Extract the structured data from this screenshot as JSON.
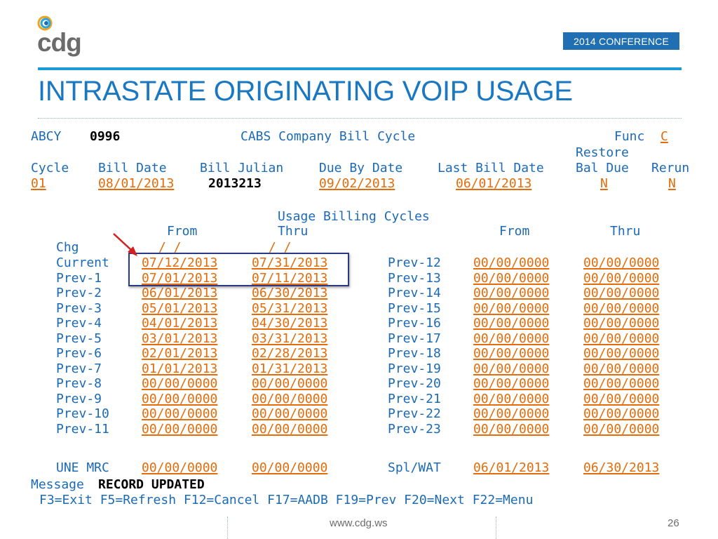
{
  "slide": {
    "logo_text": "cdg",
    "conference_badge": "2014 CONFERENCE",
    "title": "INTRASTATE ORIGINATING VOIP USAGE",
    "footer_url": "www.cdg.ws",
    "page_number": "26"
  },
  "colors": {
    "title_blue": "#1a78c2",
    "rule_blue": "#1a9ad6",
    "badge_blue": "#1f6fb2",
    "label_blue": "#1b6ab6",
    "field_orange": "#e46c0a",
    "highlight_box": "#2a3a86",
    "arrow_red": "#d21f1f"
  },
  "icons": {
    "logo": "cdg-logo-icon",
    "pointer": "red-arrow-icon"
  },
  "screen": {
    "header": {
      "screen_id": "ABCY",
      "company_code": "0996",
      "screen_title": "CABS Company Bill Cycle",
      "func_label": "Func",
      "func_value": "C"
    },
    "cycle_columns": {
      "cycle": "Cycle",
      "bill_date": "Bill Date",
      "bill_julian": "Bill Julian",
      "due_by_date": "Due By Date",
      "last_bill_date": "Last Bill Date",
      "restore": "Restore",
      "bal_due": "Bal Due",
      "rerun": "Rerun"
    },
    "cycle_values": {
      "cycle": "01",
      "bill_date": "08/01/2013",
      "bill_julian": "2013213",
      "due_by_date": "09/02/2013",
      "last_bill_date": "06/01/2013",
      "restore_bal_due": "N",
      "rerun": "N"
    },
    "usage": {
      "section_title": "Usage Billing Cycles",
      "from_header": "From",
      "thru_header": "Thru",
      "from_header_right": "From",
      "thru_header_right": "Thru",
      "chg_label": "Chg",
      "chg_from": "/ /",
      "chg_thru": "/ /",
      "left_rows": [
        {
          "label": "Current",
          "from": "07/12/2013",
          "thru": "07/31/2013"
        },
        {
          "label": "Prev-1",
          "from": "07/01/2013",
          "thru": "07/11/2013"
        },
        {
          "label": "Prev-2",
          "from": "06/01/2013",
          "thru": "06/30/2013"
        },
        {
          "label": "Prev-3",
          "from": "05/01/2013",
          "thru": "05/31/2013"
        },
        {
          "label": "Prev-4",
          "from": "04/01/2013",
          "thru": "04/30/2013"
        },
        {
          "label": "Prev-5",
          "from": "03/01/2013",
          "thru": "03/31/2013"
        },
        {
          "label": "Prev-6",
          "from": "02/01/2013",
          "thru": "02/28/2013"
        },
        {
          "label": "Prev-7",
          "from": "01/01/2013",
          "thru": "01/31/2013"
        },
        {
          "label": "Prev-8",
          "from": "00/00/0000",
          "thru": "00/00/0000"
        },
        {
          "label": "Prev-9",
          "from": "00/00/0000",
          "thru": "00/00/0000"
        },
        {
          "label": "Prev-10",
          "from": "00/00/0000",
          "thru": "00/00/0000"
        },
        {
          "label": "Prev-11",
          "from": "00/00/0000",
          "thru": "00/00/0000"
        }
      ],
      "right_rows": [
        {
          "label": "Prev-12",
          "from": "00/00/0000",
          "thru": "00/00/0000"
        },
        {
          "label": "Prev-13",
          "from": "00/00/0000",
          "thru": "00/00/0000"
        },
        {
          "label": "Prev-14",
          "from": "00/00/0000",
          "thru": "00/00/0000"
        },
        {
          "label": "Prev-15",
          "from": "00/00/0000",
          "thru": "00/00/0000"
        },
        {
          "label": "Prev-16",
          "from": "00/00/0000",
          "thru": "00/00/0000"
        },
        {
          "label": "Prev-17",
          "from": "00/00/0000",
          "thru": "00/00/0000"
        },
        {
          "label": "Prev-18",
          "from": "00/00/0000",
          "thru": "00/00/0000"
        },
        {
          "label": "Prev-19",
          "from": "00/00/0000",
          "thru": "00/00/0000"
        },
        {
          "label": "Prev-20",
          "from": "00/00/0000",
          "thru": "00/00/0000"
        },
        {
          "label": "Prev-21",
          "from": "00/00/0000",
          "thru": "00/00/0000"
        },
        {
          "label": "Prev-22",
          "from": "00/00/0000",
          "thru": "00/00/0000"
        },
        {
          "label": "Prev-23",
          "from": "00/00/0000",
          "thru": "00/00/0000"
        }
      ],
      "une_mrc": {
        "label": "UNE MRC",
        "from": "00/00/0000",
        "thru": "00/00/0000"
      },
      "spl_wat": {
        "label": "Spl/WAT",
        "from": "06/01/2013",
        "thru": "06/30/2013"
      }
    },
    "message": {
      "label": "Message",
      "text": "RECORD UPDATED"
    },
    "function_keys": "F3=Exit F5=Refresh F12=Cancel F17=AADB F19=Prev F20=Next F22=Menu"
  }
}
